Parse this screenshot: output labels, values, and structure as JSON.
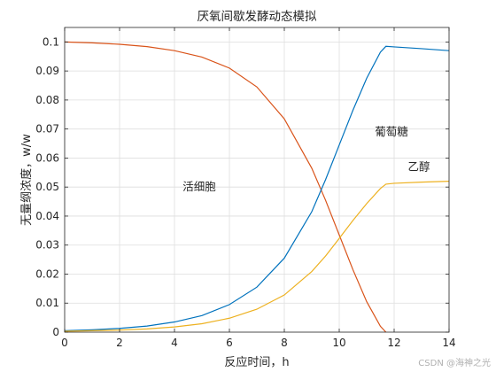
{
  "chart_data": {
    "type": "line",
    "title": "厌氧间歇发酵动态模拟",
    "xlabel": "反应时间，h",
    "ylabel": "无量纲浓度，w/w",
    "xlim": [
      0,
      14
    ],
    "ylim": [
      0,
      0.105
    ],
    "xticks": [
      "0",
      "2",
      "4",
      "6",
      "8",
      "10",
      "12",
      "14"
    ],
    "yticks": [
      "0",
      "0.01",
      "0.02",
      "0.03",
      "0.04",
      "0.05",
      "0.06",
      "0.07",
      "0.08",
      "0.09",
      "0.1"
    ],
    "grid": true,
    "series": [
      {
        "name": "活细胞",
        "color": "#D95319",
        "x": [
          0,
          1,
          2,
          3,
          4,
          5,
          6,
          7,
          8,
          9,
          9.5,
          10,
          10.5,
          11,
          11.5,
          11.7
        ],
        "y": [
          0.1,
          0.0997,
          0.0992,
          0.0984,
          0.097,
          0.0948,
          0.091,
          0.0845,
          0.0735,
          0.0565,
          0.0455,
          0.0335,
          0.0215,
          0.0105,
          0.002,
          0.0
        ]
      },
      {
        "name": "葡萄糖",
        "color": "#0072BD",
        "x": [
          0,
          1,
          2,
          3,
          4,
          5,
          6,
          7,
          8,
          9,
          9.5,
          10,
          10.5,
          11,
          11.5,
          11.7,
          12,
          13,
          14
        ],
        "y": [
          0.0005,
          0.0008,
          0.0013,
          0.0021,
          0.0035,
          0.0057,
          0.0095,
          0.0155,
          0.0255,
          0.0415,
          0.0525,
          0.0645,
          0.0765,
          0.0875,
          0.0965,
          0.0985,
          0.0983,
          0.0977,
          0.097
        ]
      },
      {
        "name": "乙醇",
        "color": "#EDB120",
        "x": [
          0,
          1,
          2,
          3,
          4,
          5,
          6,
          7,
          8,
          9,
          9.5,
          10,
          10.5,
          11,
          11.5,
          11.7,
          12,
          13,
          14
        ],
        "y": [
          0.0003,
          0.0005,
          0.0007,
          0.0011,
          0.0018,
          0.0029,
          0.0048,
          0.0079,
          0.0128,
          0.0209,
          0.0262,
          0.0323,
          0.0385,
          0.0443,
          0.0495,
          0.051,
          0.0513,
          0.0517,
          0.052
        ]
      }
    ],
    "annotations": [
      {
        "text": "活细胞",
        "x": 4.3,
        "y": 0.05
      },
      {
        "text": "葡萄糖",
        "x": 11.3,
        "y": 0.069
      },
      {
        "text": "乙醇",
        "x": 12.5,
        "y": 0.057
      }
    ]
  },
  "watermark": "CSDN @海神之光"
}
